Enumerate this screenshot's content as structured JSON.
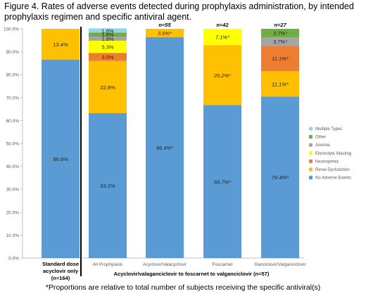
{
  "figure": {
    "caption": "Figure 4. Rates of adverse events detected during prophylaxis administration, by intended prophylaxis regimen and specific antiviral agent.",
    "footnote": "*Proportions are relative to total number of subjects receiving the specific antiviral(s)"
  },
  "chart_data": {
    "type": "bar",
    "stacked": true,
    "ylim": [
      0,
      100
    ],
    "yticks": [
      "0.0%",
      "10.0%",
      "20.0%",
      "30.0%",
      "40.0%",
      "50.0%",
      "60.0%",
      "70.0%",
      "80.0%",
      "90.0%",
      "100.0%"
    ],
    "categories": [
      {
        "label": "Standard dose acyclovir only (n=164)",
        "lines": [
          "Standard dose",
          "acyclovir only",
          "(n=164)"
        ],
        "bold": true,
        "n_label": ""
      },
      {
        "label": "All Prophylaxis",
        "lines": [
          "All Prophylaxis"
        ],
        "bold": false,
        "n_label": ""
      },
      {
        "label": "Acyclovir/Valacyclovir",
        "lines": [
          "Acyclovir/Valacyclovir"
        ],
        "bold": false,
        "n_label": "n=55"
      },
      {
        "label": "Foscarnet",
        "lines": [
          "Foscarnet"
        ],
        "bold": false,
        "n_label": "n=42"
      },
      {
        "label": "Ganciclovir/Valganciclovir",
        "lines": [
          "Ganciclovir/Valganciclovir"
        ],
        "bold": false,
        "n_label": "n=27"
      }
    ],
    "group_label": "Acyclovir/valaganciclovir to foscarnet to valganciclovir (n=57)",
    "series": [
      {
        "name": "No Adverse Events",
        "color": "#5B9BD5",
        "values": [
          86.6,
          63.2,
          96.4,
          66.7,
          70.4
        ],
        "labels": [
          "86.6%",
          "63.2%",
          "96.4%*",
          "66.7%*",
          "70.4%*"
        ]
      },
      {
        "name": "Renal Dysfunction",
        "color": "#FFC000",
        "values": [
          13.4,
          22.8,
          3.6,
          26.2,
          11.1
        ],
        "labels": [
          "13.4%",
          "22.8%",
          "3.6%*",
          "26.2%*",
          "11.1%*"
        ]
      },
      {
        "name": "Neutropenia",
        "color": "#ED7D31",
        "values": [
          0,
          3.5,
          0,
          0,
          11.1
        ],
        "labels": [
          "",
          "3.5%",
          "",
          "",
          "11.1%*"
        ]
      },
      {
        "name": "Electrolyte Wasting",
        "color": "#FFFF00",
        "values": [
          0,
          5.3,
          0,
          7.1,
          0
        ],
        "labels": [
          "",
          "5.3%",
          "",
          "7.1%*",
          ""
        ]
      },
      {
        "name": "Anemia",
        "color": "#A5A5A5",
        "values": [
          0,
          1.8,
          0,
          0,
          3.7
        ],
        "labels": [
          "",
          "1.8%",
          "",
          "",
          "3.7%*"
        ]
      },
      {
        "name": "Other",
        "color": "#70AD47",
        "values": [
          0,
          1.8,
          0,
          0,
          3.7
        ],
        "labels": [
          "",
          "1.8%",
          "",
          "",
          "3.7%*"
        ]
      },
      {
        "name": "Multiple Types",
        "color": "#8FD6E9",
        "values": [
          0,
          1.8,
          0,
          0,
          0
        ],
        "labels": [
          "",
          "1.8%",
          "",
          "",
          ""
        ]
      }
    ],
    "legend": {
      "position": "right",
      "order": [
        "Multiple Types",
        "Other",
        "Anemia",
        "Electrolyte Wasting",
        "Neutropenia",
        "Renal Dysfunction",
        "No Adverse Events"
      ]
    },
    "divider": "between first and second category"
  }
}
